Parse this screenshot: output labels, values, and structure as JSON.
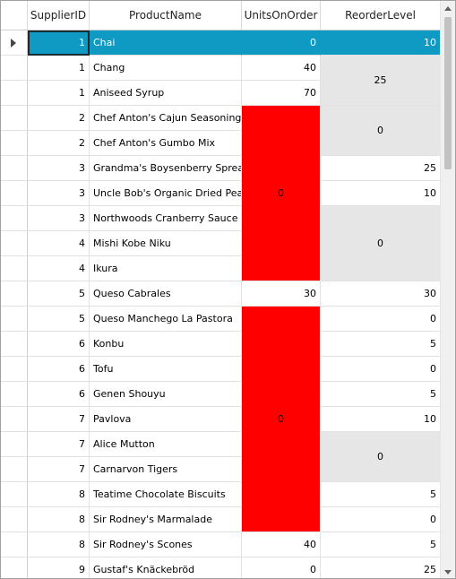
{
  "columns": {
    "supplier_id": "SupplierID",
    "product_name": "ProductName",
    "units_on_order": "UnitsOnOrder",
    "reorder_level": "ReorderLevel"
  },
  "rows": [
    {
      "supplier": "1",
      "product": "Chai",
      "units": "0",
      "reorder": "10"
    },
    {
      "supplier": "1",
      "product": "Chang",
      "units": "40",
      "reorder": "25"
    },
    {
      "supplier": "1",
      "product": "Aniseed Syrup",
      "units": "70",
      "reorder": "25"
    },
    {
      "supplier": "2",
      "product": "Chef Anton's Cajun Seasoning",
      "units": "0",
      "reorder": "0"
    },
    {
      "supplier": "2",
      "product": "Chef Anton's Gumbo Mix",
      "units": "0",
      "reorder": "0"
    },
    {
      "supplier": "3",
      "product": "Grandma's Boysenberry Spread",
      "units": "0",
      "reorder": "25"
    },
    {
      "supplier": "3",
      "product": "Uncle Bob's Organic Dried Pears",
      "units": "0",
      "reorder": "10"
    },
    {
      "supplier": "3",
      "product": "Northwoods Cranberry Sauce",
      "units": "0",
      "reorder": "0"
    },
    {
      "supplier": "4",
      "product": "Mishi Kobe Niku",
      "units": "0",
      "reorder": "0"
    },
    {
      "supplier": "4",
      "product": "Ikura",
      "units": "0",
      "reorder": "0"
    },
    {
      "supplier": "5",
      "product": "Queso Cabrales",
      "units": "30",
      "reorder": "30"
    },
    {
      "supplier": "5",
      "product": "Queso Manchego La Pastora",
      "units": "0",
      "reorder": "0"
    },
    {
      "supplier": "6",
      "product": "Konbu",
      "units": "0",
      "reorder": "5"
    },
    {
      "supplier": "6",
      "product": "Tofu",
      "units": "0",
      "reorder": "0"
    },
    {
      "supplier": "6",
      "product": "Genen Shouyu",
      "units": "0",
      "reorder": "5"
    },
    {
      "supplier": "7",
      "product": "Pavlova",
      "units": "0",
      "reorder": "10"
    },
    {
      "supplier": "7",
      "product": "Alice Mutton",
      "units": "0",
      "reorder": "0"
    },
    {
      "supplier": "7",
      "product": "Carnarvon Tigers",
      "units": "0",
      "reorder": "0"
    },
    {
      "supplier": "8",
      "product": "Teatime Chocolate Biscuits",
      "units": "0",
      "reorder": "5"
    },
    {
      "supplier": "8",
      "product": "Sir Rodney's Marmalade",
      "units": "0",
      "reorder": "0"
    },
    {
      "supplier": "8",
      "product": "Sir Rodney's Scones",
      "units": "40",
      "reorder": "5"
    },
    {
      "supplier": "9",
      "product": "Gustaf's Knäckebröd",
      "units": "0",
      "reorder": "25"
    }
  ],
  "units_merges": [
    {
      "start": 3,
      "end": 9,
      "value": "0"
    },
    {
      "start": 11,
      "end": 19,
      "value": "0"
    }
  ],
  "reorder_merges": [
    {
      "start": 1,
      "end": 2,
      "value": "25"
    },
    {
      "start": 3,
      "end": 4,
      "value": "0"
    },
    {
      "start": 7,
      "end": 9,
      "value": "0"
    },
    {
      "start": 16,
      "end": 17,
      "value": "0"
    }
  ],
  "colors": {
    "selection": "#0f9ac4",
    "merged_units": "#ff0000",
    "merged_reorder": "#e6e6e6"
  }
}
